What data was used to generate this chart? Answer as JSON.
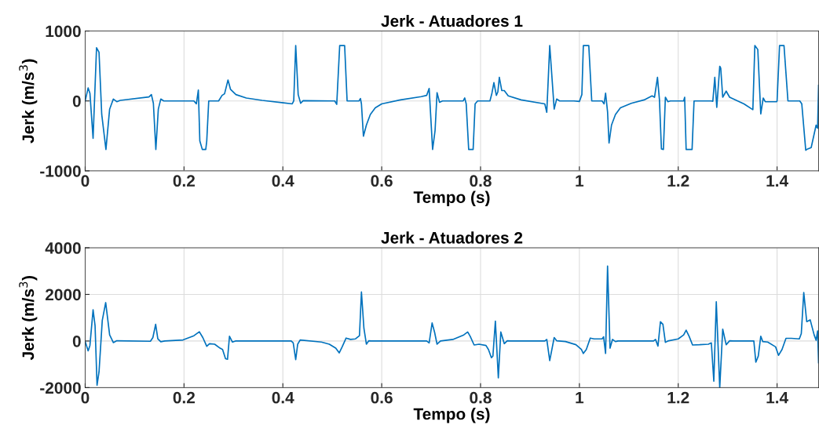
{
  "chart_data": [
    {
      "type": "line",
      "title": "Jerk - Atuadores 1",
      "xlabel": "Tempo (s)",
      "ylabel": "Jerk (m/s$^{3}$)",
      "xlim": [
        0,
        1.484
      ],
      "xticks": [
        0,
        0.2,
        0.4,
        0.6,
        0.8,
        1,
        1.2,
        1.4
      ],
      "ylim": [
        -1000,
        1000
      ],
      "yticks": [
        -1000,
        0,
        1000
      ],
      "grid": true,
      "line_style": "solid",
      "series": [
        {
          "color": "#0072bd",
          "x": [
            0,
            0.006,
            0.0096,
            0.016,
            0.023,
            0.028,
            0.0335,
            0.042,
            0.0495,
            0.057,
            0.064,
            0.071,
            0.129,
            0.134,
            0.138,
            0.143,
            0.148,
            0.153,
            0.159,
            0.22,
            0.225,
            0.229,
            0.232,
            0.237,
            0.244,
            0.246,
            0.25,
            0.27,
            0.277,
            0.282,
            0.289,
            0.294,
            0.305,
            0.326,
            0.358,
            0.401,
            0.419,
            0.422,
            0.426,
            0.431,
            0.436,
            0.441,
            0.505,
            0.509,
            0.515,
            0.525,
            0.53,
            0.554,
            0.557,
            0.559,
            0.563,
            0.569,
            0.577,
            0.587,
            0.6,
            0.638,
            0.68,
            0.691,
            0.696,
            0.703,
            0.708,
            0.712,
            0.717,
            0.723,
            0.765,
            0.768,
            0.771,
            0.776,
            0.785,
            0.789,
            0.794,
            0.819,
            0.823,
            0.827,
            0.832,
            0.835,
            0.838,
            0.843,
            0.848,
            0.856,
            0.882,
            0.93,
            0.934,
            0.94,
            0.949,
            0.954,
            0.96,
            0.989,
            1.0,
            1.005,
            1.008,
            1.019,
            1.025,
            1.046,
            1.05,
            1.053,
            1.057,
            1.06,
            1.065,
            1.073,
            1.083,
            1.105,
            1.131,
            1.147,
            1.152,
            1.158,
            1.162,
            1.166,
            1.17,
            1.174,
            1.179,
            1.184,
            1.211,
            1.213,
            1.216,
            1.228,
            1.232,
            1.267,
            1.27,
            1.274,
            1.278,
            1.284,
            1.286,
            1.29,
            1.297,
            1.304,
            1.333,
            1.351,
            1.355,
            1.361,
            1.367,
            1.372,
            1.376,
            1.399,
            1.4,
            1.405,
            1.414,
            1.422,
            1.446,
            1.45,
            1.458,
            1.462,
            1.469,
            1.479,
            1.482,
            1.484
          ],
          "values": [
            0,
            186,
            110,
            -534,
            762,
            697,
            -193,
            -694,
            -117,
            27,
            -11,
            8,
            57,
            91,
            -34,
            -694,
            -117,
            27,
            0,
            0,
            -42,
            155,
            -572,
            -694,
            -694,
            -572,
            0,
            0,
            80,
            102,
            299,
            167,
            91,
            42,
            8,
            -27,
            -42,
            0,
            792,
            91,
            -34,
            4,
            0,
            -49,
            792,
            792,
            0,
            0,
            34,
            -42,
            -504,
            -345,
            -193,
            -99,
            -42,
            15,
            61,
            80,
            178,
            -694,
            -421,
            118,
            -19,
            0,
            0,
            42,
            -42,
            -694,
            -694,
            -42,
            0,
            0,
            110,
            262,
            80,
            129,
            337,
            148,
            148,
            72,
            15,
            -42,
            -163,
            792,
            -117,
            27,
            0,
            0,
            -8,
            91,
            792,
            792,
            0,
            0,
            -42,
            110,
            -155,
            -603,
            -345,
            -193,
            -99,
            -34,
            15,
            72,
            53,
            337,
            15,
            -686,
            -694,
            53,
            -11,
            0,
            0,
            53,
            -694,
            -694,
            0,
            0,
            -4,
            337,
            -91,
            496,
            470,
            53,
            140,
            53,
            -42,
            -125,
            792,
            735,
            -186,
            42,
            -11,
            -11,
            0,
            792,
            792,
            0,
            0,
            -42,
            -705,
            -686,
            -667,
            -345,
            -390,
            224
          ]
        }
      ]
    },
    {
      "type": "line",
      "title": "Jerk - Atuadores 2",
      "xlabel": "Tempo (s)",
      "ylabel": "Jerk (m/s$^{3}$)",
      "xlim": [
        0,
        1.484
      ],
      "xticks": [
        0,
        0.2,
        0.4,
        0.6,
        0.8,
        1,
        1.2,
        1.4
      ],
      "ylim": [
        -2000,
        4000
      ],
      "yticks": [
        -2000,
        0,
        2000,
        4000
      ],
      "grid": true,
      "line_style": "solid",
      "series": [
        {
          "color": "#0072bd",
          "x": [
            0,
            0.006,
            0.0096,
            0.016,
            0.02,
            0.024,
            0.028,
            0.0346,
            0.0415,
            0.0495,
            0.057,
            0.064,
            0.132,
            0.137,
            0.1426,
            0.147,
            0.153,
            0.161,
            0.198,
            0.22,
            0.231,
            0.238,
            0.246,
            0.2516,
            0.262,
            0.273,
            0.278,
            0.284,
            0.288,
            0.292,
            0.298,
            0.304,
            0.417,
            0.421,
            0.426,
            0.43,
            0.435,
            0.478,
            0.494,
            0.507,
            0.514,
            0.52,
            0.528,
            0.537,
            0.547,
            0.555,
            0.559,
            0.564,
            0.569,
            0.574,
            0.579,
            0.691,
            0.696,
            0.702,
            0.707,
            0.712,
            0.719,
            0.744,
            0.766,
            0.774,
            0.779,
            0.787,
            0.797,
            0.811,
            0.816,
            0.822,
            0.825,
            0.83,
            0.836,
            0.841,
            0.848,
            0.854,
            0.861,
            0.93,
            0.934,
            0.94,
            0.949,
            0.954,
            0.972,
            0.993,
            1.004,
            1.008,
            1.014,
            1.022,
            1.03,
            1.046,
            1.049,
            1.053,
            1.057,
            1.062,
            1.067,
            1.073,
            1.078,
            1.15,
            1.154,
            1.159,
            1.164,
            1.169,
            1.174,
            1.179,
            1.2,
            1.211,
            1.216,
            1.222,
            1.229,
            1.243,
            1.261,
            1.267,
            1.272,
            1.277,
            1.284,
            1.29,
            1.297,
            1.304,
            1.312,
            1.353,
            1.357,
            1.362,
            1.367,
            1.371,
            1.381,
            1.397,
            1.403,
            1.41,
            1.418,
            1.429,
            1.445,
            1.449,
            1.454,
            1.46,
            1.467,
            1.475,
            1.479,
            1.482,
            1.484
          ],
          "values": [
            -23,
            -420,
            -193,
            1340,
            659,
            -1897,
            -1329,
            886,
            1647,
            261,
            -68,
            11,
            -11,
            148,
            716,
            91,
            -34,
            0,
            45,
            227,
            398,
            148,
            -227,
            -114,
            -136,
            -307,
            -364,
            -761,
            -784,
            204,
            -45,
            0,
            0,
            -80,
            -795,
            -136,
            45,
            -45,
            -136,
            -307,
            -511,
            -250,
            125,
            68,
            91,
            227,
            2102,
            545,
            -136,
            11,
            0,
            0,
            -80,
            773,
            375,
            -136,
            0,
            68,
            261,
            386,
            204,
            -170,
            -136,
            -193,
            -364,
            -716,
            -648,
            852,
            -1579,
            386,
            -114,
            11,
            0,
            0,
            68,
            -841,
            148,
            11,
            -23,
            -159,
            -364,
            -534,
            -364,
            125,
            91,
            91,
            182,
            -534,
            3215,
            -307,
            68,
            -23,
            0,
            0,
            68,
            -216,
            829,
            716,
            -57,
            0,
            91,
            261,
            466,
            204,
            -170,
            -159,
            -136,
            -80,
            -1727,
            1681,
            -2000,
            511,
            -159,
            11,
            0,
            0,
            -909,
            -648,
            204,
            -23,
            -45,
            -250,
            -614,
            -364,
            114,
            114,
            91,
            318,
            2079,
            829,
            909,
            261,
            34,
            432,
            -932
          ]
        }
      ]
    }
  ]
}
